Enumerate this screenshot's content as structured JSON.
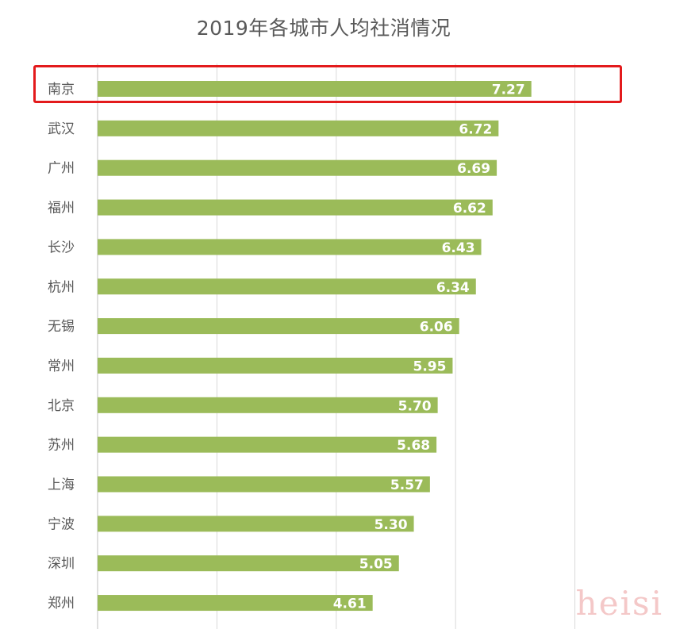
{
  "title": "2019年各城市人均社消情况",
  "watermark": "heisi",
  "chart_data": {
    "type": "bar",
    "orientation": "horizontal",
    "title": "2019年各城市人均社消情况",
    "categories": [
      "南京",
      "武汉",
      "广州",
      "福州",
      "长沙",
      "杭州",
      "无锡",
      "常州",
      "北京",
      "苏州",
      "上海",
      "宁波",
      "深圳",
      "郑州"
    ],
    "values": [
      7.27,
      6.72,
      6.69,
      6.62,
      6.43,
      6.34,
      6.06,
      5.95,
      5.7,
      5.68,
      5.57,
      5.3,
      5.05,
      4.61
    ],
    "value_labels": [
      "7.27",
      "6.72",
      "6.69",
      "6.62",
      "6.43",
      "6.34",
      "6.06",
      "5.95",
      "5.70",
      "5.68",
      "5.57",
      "5.30",
      "5.05",
      "4.61"
    ],
    "xlim": [
      0,
      8
    ],
    "grid": true,
    "highlighted_category": "南京",
    "bar_color": "#9bbb59",
    "label_color": "#ffffff",
    "highlight_color": "#e31a1c"
  }
}
